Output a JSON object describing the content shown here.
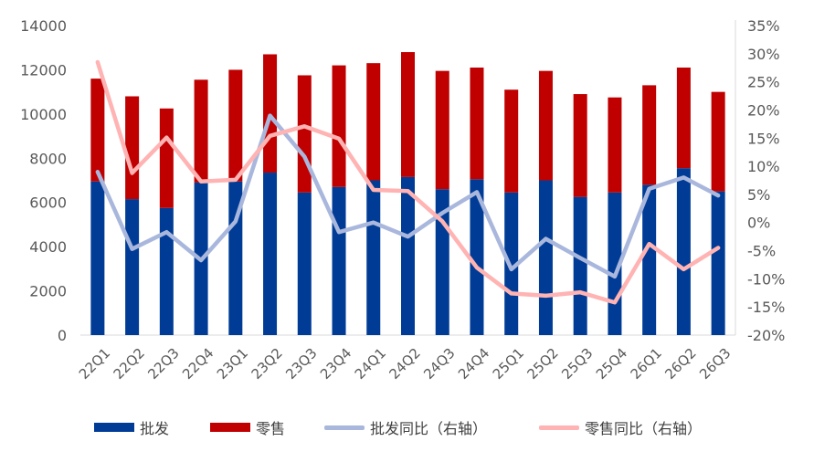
{
  "chart_data": {
    "type": "bar+line",
    "stacked": true,
    "categories": [
      "22Q1",
      "22Q2",
      "22Q3",
      "22Q4",
      "23Q1",
      "23Q2",
      "23Q3",
      "23Q4",
      "24Q1",
      "24Q2",
      "24Q3",
      "24Q4",
      "25Q1",
      "25Q2",
      "25Q3",
      "25Q4",
      "26Q1",
      "26Q2",
      "26Q3"
    ],
    "bar_series": [
      {
        "name": "批发",
        "color": "#003C96",
        "values": [
          6950,
          6150,
          5750,
          6900,
          6950,
          7350,
          6450,
          6700,
          7000,
          7150,
          6600,
          7050,
          6450,
          7000,
          6250,
          6450,
          6800,
          7550,
          6500
        ]
      },
      {
        "name": "零售",
        "color": "#C00000",
        "values": [
          4650,
          4650,
          4500,
          4650,
          5050,
          5350,
          5300,
          5500,
          5300,
          5650,
          5350,
          5050,
          4650,
          4950,
          4650,
          4300,
          4500,
          4550,
          4500
        ]
      }
    ],
    "line_series": [
      {
        "name": "批发同比（右轴）",
        "color": "#A9B7DD",
        "axis": "right",
        "values": [
          9.0,
          -4.7,
          -1.7,
          -6.7,
          0.2,
          19.0,
          11.7,
          -1.7,
          0.0,
          -2.5,
          1.7,
          5.4,
          -8.3,
          -2.9,
          -6.3,
          -9.6,
          6.0,
          8.0,
          4.8
        ]
      },
      {
        "name": "零售同比（右轴）",
        "color": "#FFB3B3",
        "axis": "right",
        "values": [
          28.5,
          8.8,
          15.1,
          7.3,
          7.6,
          15.4,
          17.1,
          14.9,
          5.8,
          5.6,
          0.2,
          -8.0,
          -12.6,
          -13.0,
          -12.4,
          -14.2,
          -3.8,
          -8.3,
          -4.5
        ]
      }
    ],
    "y_left": {
      "min": 0,
      "max": 14000,
      "step": 2000,
      "ticks": [
        "0",
        "2000",
        "4000",
        "6000",
        "8000",
        "10000",
        "12000",
        "14000"
      ]
    },
    "y_right": {
      "min": -20,
      "max": 35,
      "step": 5,
      "ticks": [
        "-20%",
        "-15%",
        "-10%",
        "-5%",
        "0%",
        "5%",
        "10%",
        "15%",
        "20%",
        "25%",
        "30%",
        "35%"
      ]
    },
    "grid": false,
    "legend_position": "bottom"
  }
}
